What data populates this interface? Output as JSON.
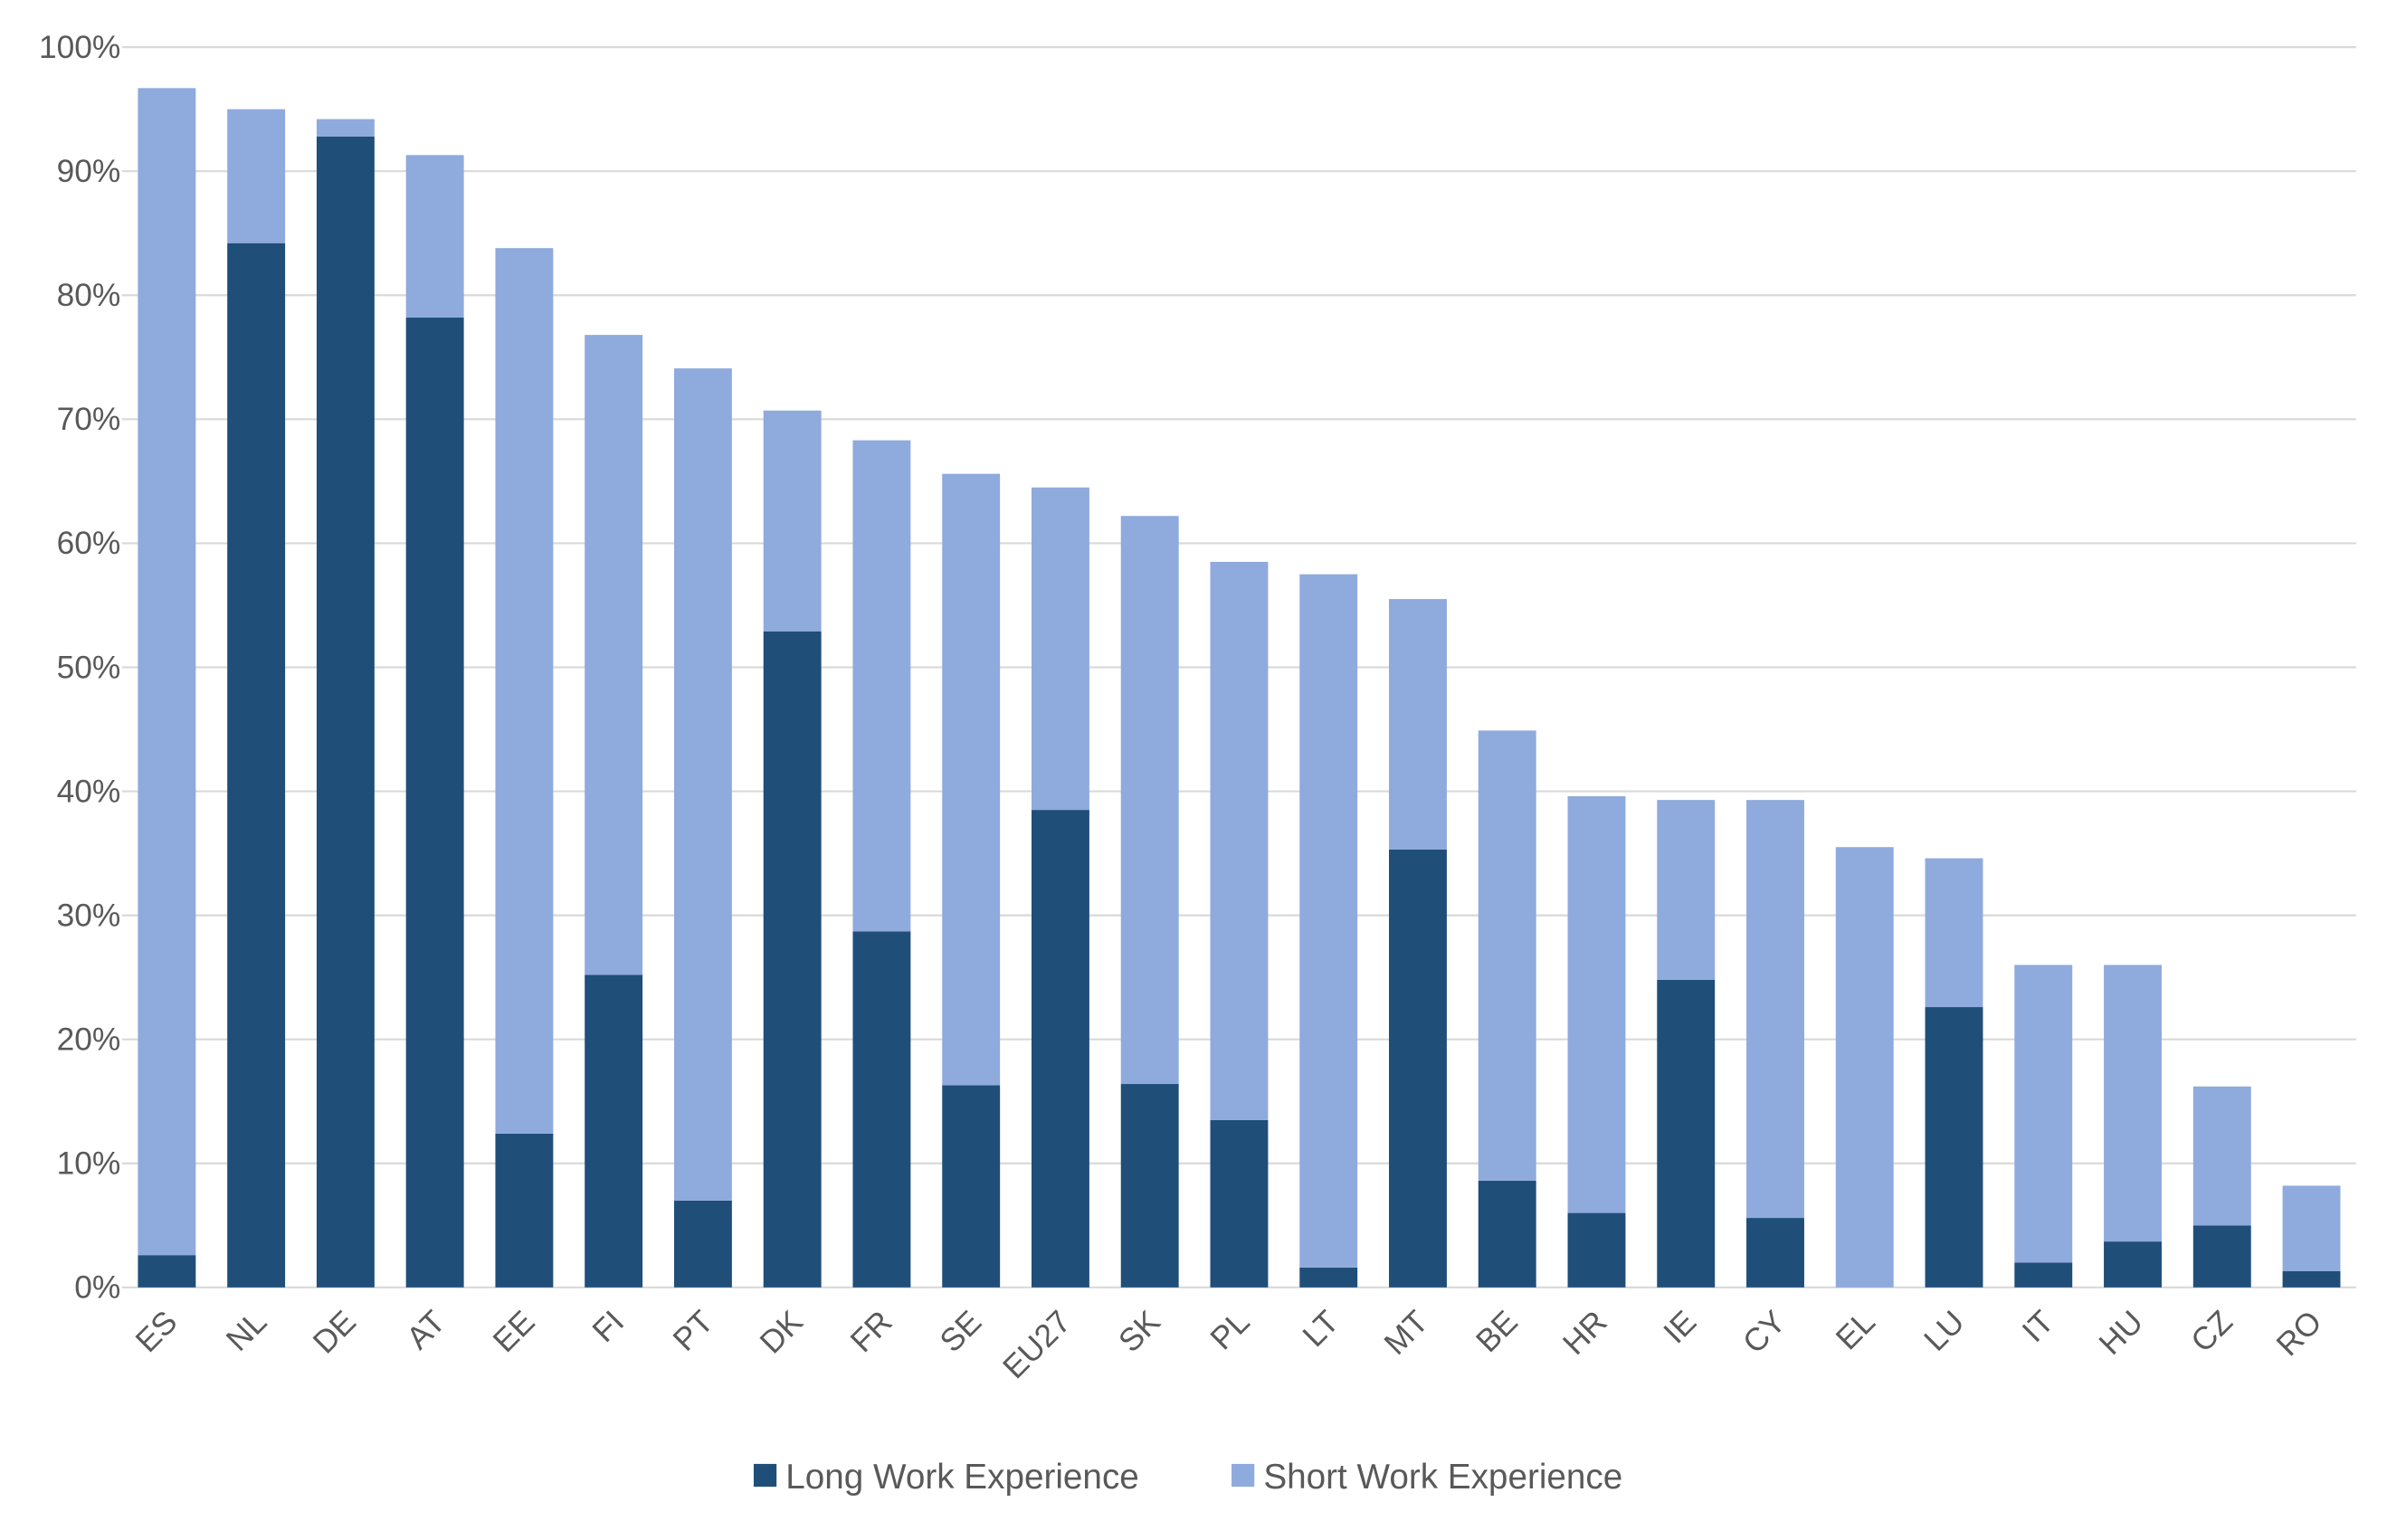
{
  "chart_data": {
    "type": "bar",
    "stacked": true,
    "title": "",
    "xlabel": "",
    "ylabel": "",
    "ylim": [
      0,
      100
    ],
    "yticks": [
      "0%",
      "10%",
      "20%",
      "30%",
      "40%",
      "50%",
      "60%",
      "70%",
      "80%",
      "90%",
      "100%"
    ],
    "grid": true,
    "legend_position": "bottom",
    "categories": [
      "ES",
      "NL",
      "DE",
      "AT",
      "EE",
      "FI",
      "PT",
      "DK",
      "FR",
      "SE",
      "EU27",
      "SK",
      "PL",
      "LT",
      "MT",
      "BE",
      "HR",
      "IE",
      "CY",
      "EL",
      "LU",
      "IT",
      "HU",
      "CZ",
      "RO"
    ],
    "series": [
      {
        "name": "Long Work Experience",
        "color": "#1F4E79",
        "values": [
          2.6,
          84.2,
          92.8,
          78.2,
          12.4,
          25.2,
          7.0,
          52.9,
          28.7,
          16.3,
          38.5,
          16.4,
          13.5,
          1.6,
          35.3,
          8.6,
          6.0,
          24.8,
          5.6,
          0.0,
          22.6,
          2.0,
          3.7,
          5.0,
          1.3
        ]
      },
      {
        "name": "Short Work Experience",
        "color": "#8FAADC",
        "values": [
          94.1,
          10.8,
          1.4,
          13.1,
          71.4,
          51.6,
          67.1,
          17.8,
          39.6,
          49.3,
          26.0,
          45.8,
          45.0,
          55.9,
          20.2,
          36.3,
          33.6,
          14.5,
          33.7,
          35.5,
          12.0,
          24.0,
          22.3,
          11.2,
          6.9
        ]
      }
    ]
  }
}
